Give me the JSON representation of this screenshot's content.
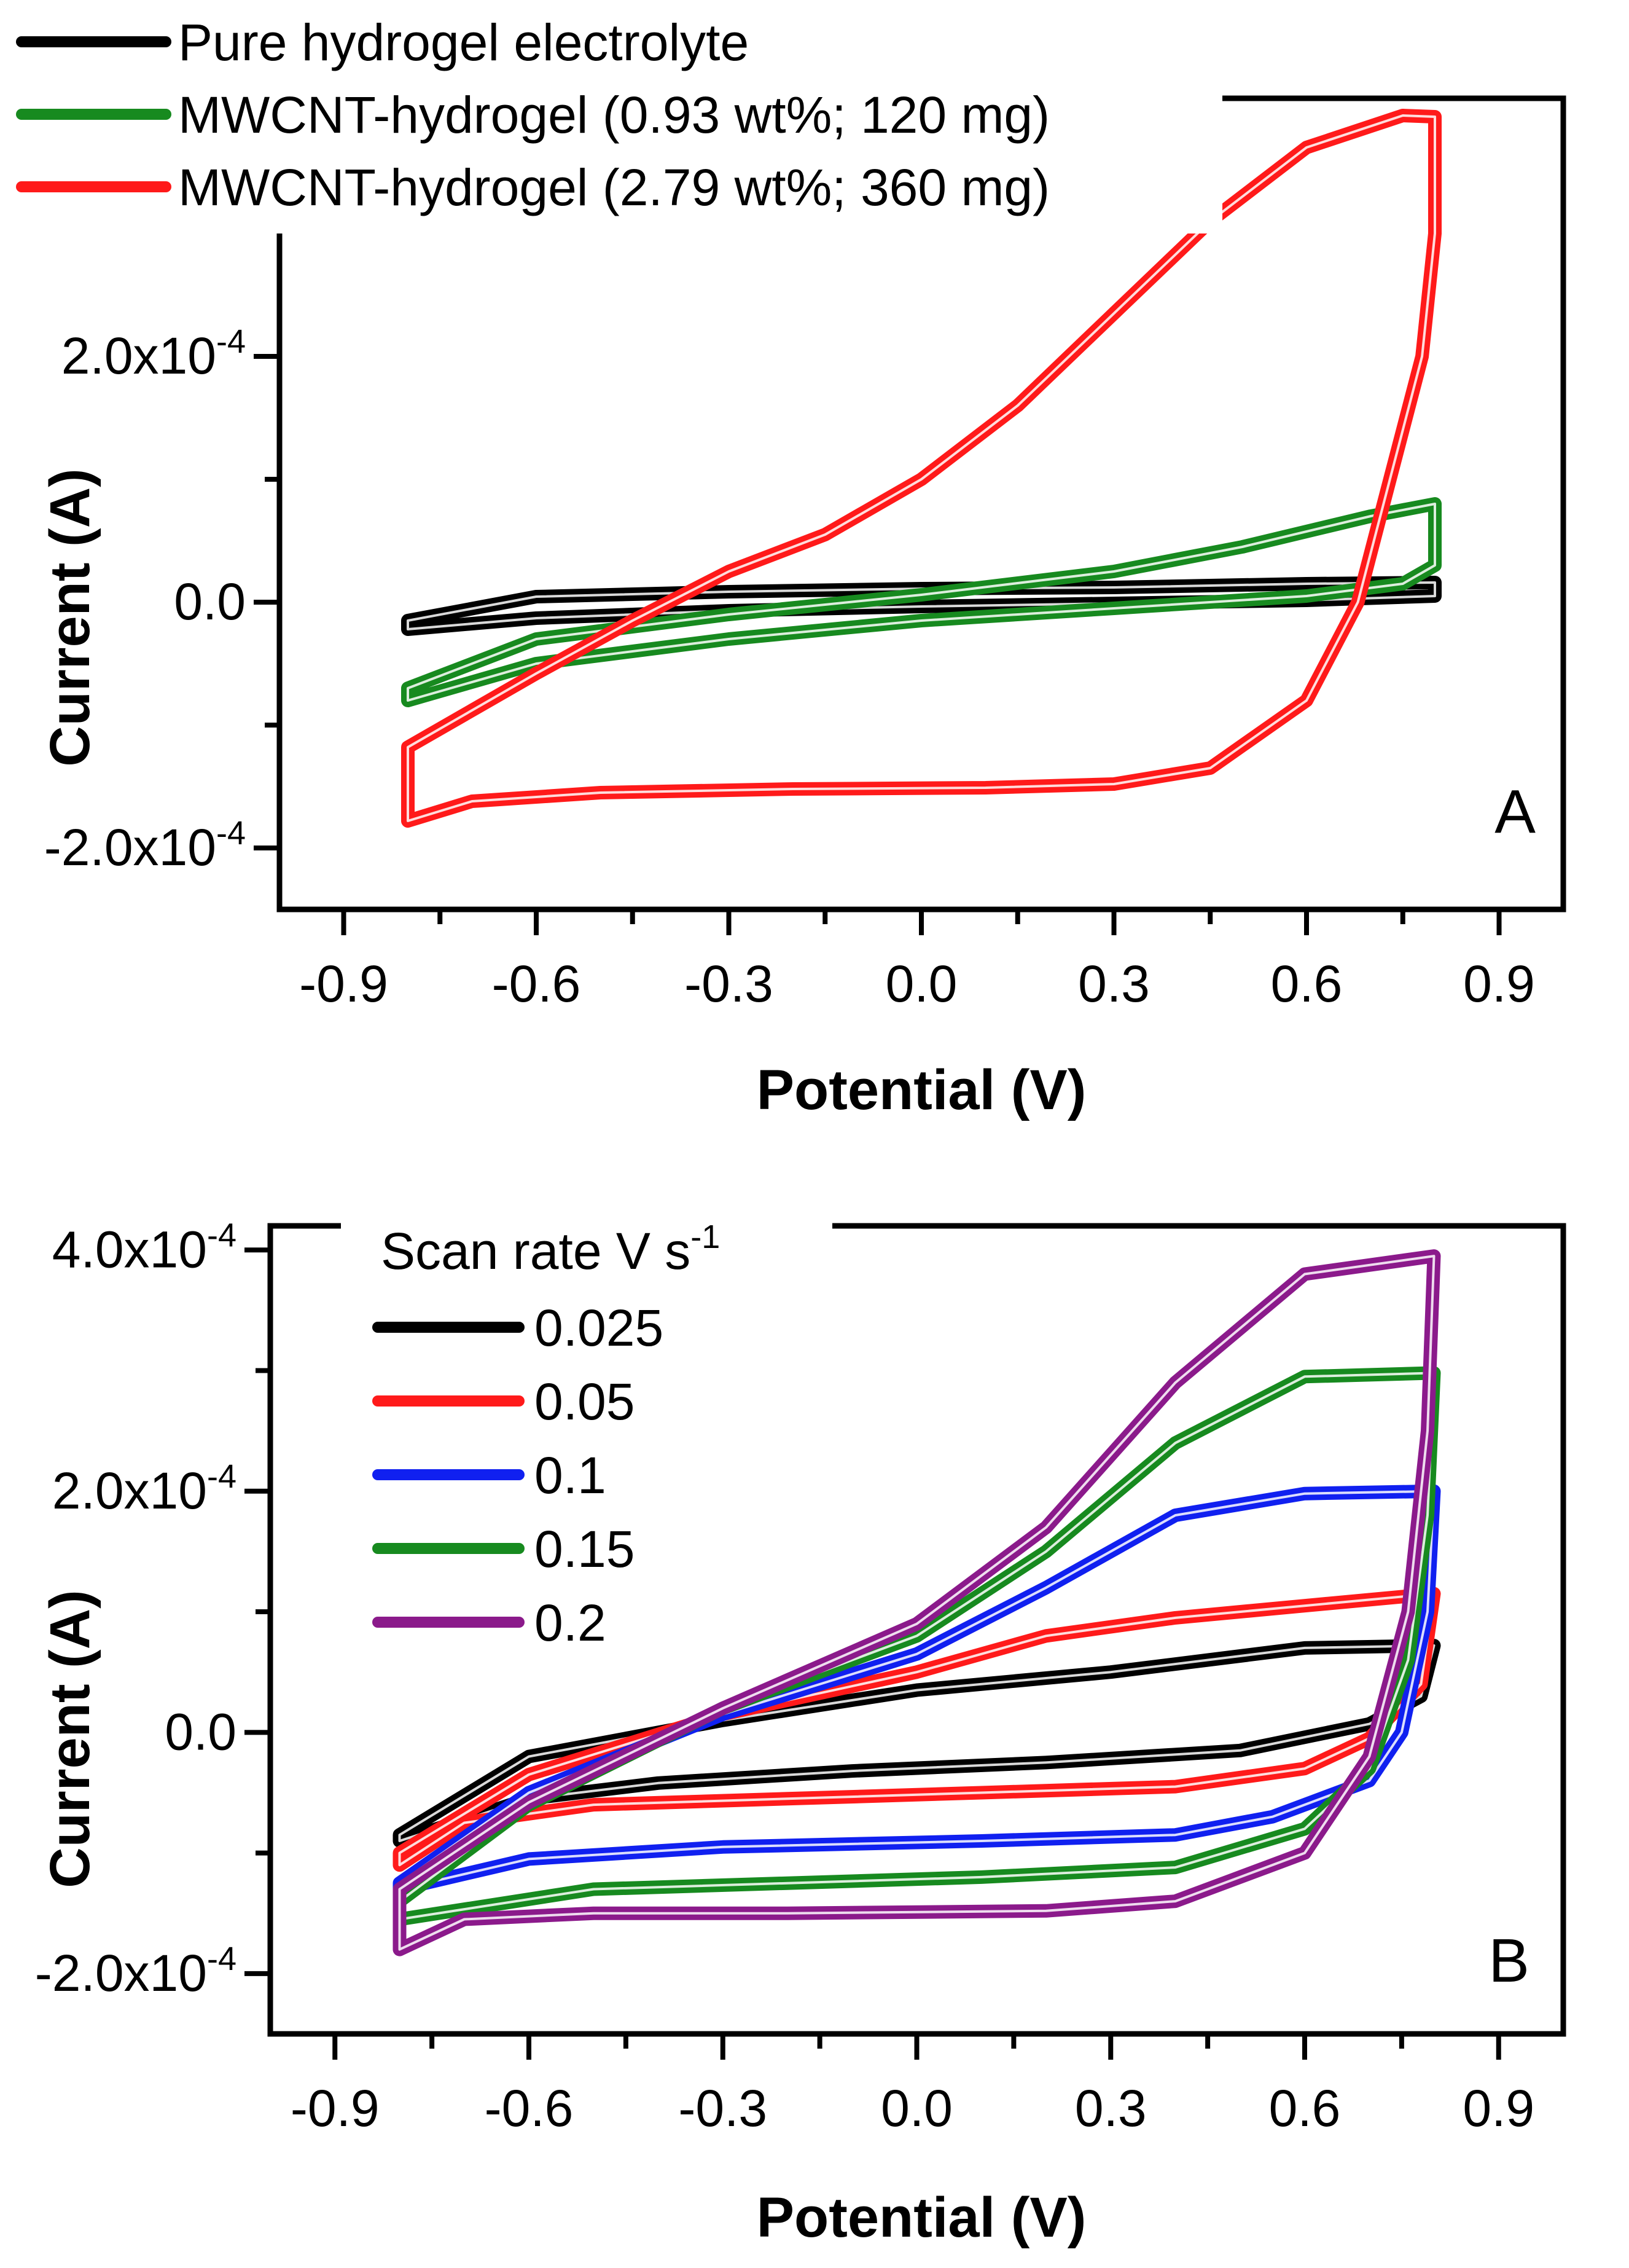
{
  "chart_data": [
    {
      "type": "line",
      "panel_label": "A",
      "xlabel": "Potential (V)",
      "ylabel": "Current (A)",
      "xlim": [
        -1.0,
        1.0
      ],
      "ylim": [
        -0.00025,
        0.00041
      ],
      "x_tick_values": [
        -0.9,
        -0.6,
        -0.3,
        0.0,
        0.3,
        0.6,
        0.9
      ],
      "x_tick_labels": [
        "-0.9",
        "-0.6",
        "-0.3",
        "0.0",
        "0.3",
        "0.6",
        "0.9"
      ],
      "y_tick_values": [
        -0.0002,
        0.0,
        0.0002
      ],
      "y_tick_labels": [
        {
          "mantissa": "-2.0x10",
          "exponent": "-4"
        },
        {
          "mantissa": "0.0",
          "exponent": ""
        },
        {
          "mantissa": "2.0x10",
          "exponent": "-4"
        }
      ],
      "legend_title": "",
      "legend_position": "top-left",
      "series": [
        {
          "name": "Pure hydrogel electrolyte",
          "color": "#000000",
          "forward": [
            [
              -0.8,
              -1.5e-05
            ],
            [
              -0.6,
              4.5e-06
            ],
            [
              -0.3,
              8.5e-06
            ],
            [
              0.0,
              1.1e-05
            ],
            [
              0.3,
              1.2e-05
            ],
            [
              0.6,
              1.5e-05
            ],
            [
              0.8,
              1.6e-05
            ]
          ],
          "reverse": [
            [
              0.8,
              5e-06
            ],
            [
              0.6,
              1.5e-06
            ],
            [
              0.3,
              -1e-06
            ],
            [
              0.0,
              -3.5e-06
            ],
            [
              -0.3,
              -7e-06
            ],
            [
              -0.6,
              -1.3e-05
            ],
            [
              -0.8,
              -2.2e-05
            ]
          ]
        },
        {
          "name": "MWCNT-hydrogel (0.93 wt%; 120 mg)",
          "color": "#178a1f",
          "forward": [
            [
              -0.8,
              -7e-05
            ],
            [
              -0.6,
              -3e-05
            ],
            [
              -0.3,
              -1e-05
            ],
            [
              0.0,
              6e-06
            ],
            [
              0.3,
              2.5e-05
            ],
            [
              0.5,
              4.5e-05
            ],
            [
              0.7,
              7e-05
            ],
            [
              0.8,
              8e-05
            ]
          ],
          "reverse": [
            [
              0.8,
              3e-05
            ],
            [
              0.75,
              1.5e-05
            ],
            [
              0.6,
              5e-06
            ],
            [
              0.3,
              -5e-06
            ],
            [
              0.0,
              -1.5e-05
            ],
            [
              -0.3,
              -3e-05
            ],
            [
              -0.6,
              -5e-05
            ],
            [
              -0.8,
              -8e-05
            ]
          ]
        },
        {
          "name": "MWCNT-hydrogel (2.79 wt%; 360 mg)",
          "color": "#ff1a1a",
          "forward": [
            [
              -0.8,
              -0.000118
            ],
            [
              -0.6,
              -5.8e-05
            ],
            [
              -0.45,
              -1.5e-05
            ],
            [
              -0.3,
              2.5e-05
            ],
            [
              -0.15,
              5.5e-05
            ],
            [
              0.0,
              0.0001
            ],
            [
              0.15,
              0.00016
            ],
            [
              0.3,
              0.000235
            ],
            [
              0.45,
              0.00031
            ],
            [
              0.6,
              0.00037
            ],
            [
              0.75,
              0.000396
            ],
            [
              0.8,
              0.000395
            ]
          ],
          "reverse": [
            [
              0.8,
              0.000395
            ],
            [
              0.8,
              0.0003
            ],
            [
              0.78,
              0.0002
            ],
            [
              0.73,
              0.0001
            ],
            [
              0.68,
              0.0
            ],
            [
              0.6,
              -8e-05
            ],
            [
              0.45,
              -0.000135
            ],
            [
              0.3,
              -0.000148
            ],
            [
              0.1,
              -0.000151
            ],
            [
              -0.2,
              -0.000152
            ],
            [
              -0.5,
              -0.000155
            ],
            [
              -0.7,
              -0.000162
            ],
            [
              -0.8,
              -0.000178
            ]
          ]
        }
      ]
    },
    {
      "type": "line",
      "panel_label": "B",
      "xlabel": "Potential (V)",
      "ylabel": "Current (A)",
      "xlim": [
        -1.0,
        1.0
      ],
      "ylim": [
        -0.00025,
        0.00042
      ],
      "x_tick_values": [
        -0.9,
        -0.6,
        -0.3,
        0.0,
        0.3,
        0.6,
        0.9
      ],
      "x_tick_labels": [
        "-0.9",
        "-0.6",
        "-0.3",
        "0.0",
        "0.3",
        "0.6",
        "0.9"
      ],
      "y_tick_values": [
        -0.0002,
        0.0,
        0.0002,
        0.0004
      ],
      "y_tick_labels": [
        {
          "mantissa": "-2.0x10",
          "exponent": "-4"
        },
        {
          "mantissa": "0.0",
          "exponent": ""
        },
        {
          "mantissa": "2.0x10",
          "exponent": "-4"
        },
        {
          "mantissa": "4.0x10",
          "exponent": "-4"
        }
      ],
      "legend_title": {
        "main": "Scan rate V s",
        "superscript": "-1"
      },
      "legend_position": "top-left",
      "series": [
        {
          "name": "0.025",
          "color": "#000000",
          "forward": [
            [
              -0.8,
              -8.5e-05
            ],
            [
              -0.6,
              -2e-05
            ],
            [
              -0.3,
              1e-05
            ],
            [
              0.0,
              3.5e-05
            ],
            [
              0.3,
              5e-05
            ],
            [
              0.6,
              7e-05
            ],
            [
              0.8,
              7.2e-05
            ]
          ],
          "reverse": [
            [
              0.8,
              7.2e-05
            ],
            [
              0.78,
              3e-05
            ],
            [
              0.7,
              7e-06
            ],
            [
              0.5,
              -1.5e-05
            ],
            [
              0.2,
              -2.5e-05
            ],
            [
              -0.1,
              -3.2e-05
            ],
            [
              -0.4,
              -4.2e-05
            ],
            [
              -0.6,
              -5.5e-05
            ],
            [
              -0.8,
              -9e-05
            ]
          ]
        },
        {
          "name": "0.05",
          "color": "#ff1a1a",
          "forward": [
            [
              -0.8,
              -0.0001
            ],
            [
              -0.6,
              -3.5e-05
            ],
            [
              -0.3,
              1.5e-05
            ],
            [
              0.0,
              5e-05
            ],
            [
              0.2,
              8e-05
            ],
            [
              0.4,
              9.5e-05
            ],
            [
              0.6,
              0.000105
            ],
            [
              0.8,
              0.000115
            ]
          ],
          "reverse": [
            [
              0.8,
              0.000115
            ],
            [
              0.78,
              4e-05
            ],
            [
              0.7,
              -5e-06
            ],
            [
              0.6,
              -3e-05
            ],
            [
              0.4,
              -4.5e-05
            ],
            [
              0.1,
              -5e-05
            ],
            [
              -0.2,
              -5.5e-05
            ],
            [
              -0.5,
              -6e-05
            ],
            [
              -0.7,
              -7.5e-05
            ],
            [
              -0.8,
              -0.00011
            ]
          ]
        },
        {
          "name": "0.1",
          "color": "#1020f0",
          "forward": [
            [
              -0.8,
              -0.000125
            ],
            [
              -0.6,
              -5e-05
            ],
            [
              -0.3,
              1.5e-05
            ],
            [
              0.0,
              6.5e-05
            ],
            [
              0.2,
              0.00012
            ],
            [
              0.4,
              0.00018
            ],
            [
              0.6,
              0.000198
            ],
            [
              0.8,
              0.0002
            ]
          ],
          "reverse": [
            [
              0.8,
              0.0002
            ],
            [
              0.79,
              0.0001
            ],
            [
              0.75,
              0.0
            ],
            [
              0.7,
              -4e-05
            ],
            [
              0.55,
              -7e-05
            ],
            [
              0.4,
              -8.5e-05
            ],
            [
              0.1,
              -9e-05
            ],
            [
              -0.3,
              -9.5e-05
            ],
            [
              -0.6,
              -0.000105
            ],
            [
              -0.8,
              -0.00013
            ]
          ]
        },
        {
          "name": "0.15",
          "color": "#178a1f",
          "forward": [
            [
              -0.8,
              -0.00014
            ],
            [
              -0.6,
              -6e-05
            ],
            [
              -0.3,
              2e-05
            ],
            [
              0.0,
              8e-05
            ],
            [
              0.2,
              0.00015
            ],
            [
              0.4,
              0.00024
            ],
            [
              0.6,
              0.000295
            ],
            [
              0.8,
              0.000298
            ]
          ],
          "reverse": [
            [
              0.8,
              0.000298
            ],
            [
              0.79,
              0.00018
            ],
            [
              0.76,
              6e-05
            ],
            [
              0.7,
              -3e-05
            ],
            [
              0.6,
              -8e-05
            ],
            [
              0.4,
              -0.000112
            ],
            [
              0.1,
              -0.00012
            ],
            [
              -0.2,
              -0.000125
            ],
            [
              -0.5,
              -0.00013
            ],
            [
              -0.8,
              -0.000155
            ]
          ]
        },
        {
          "name": "0.2",
          "color": "#8b1a8b",
          "forward": [
            [
              -0.8,
              -0.00013
            ],
            [
              -0.6,
              -5.8e-05
            ],
            [
              -0.3,
              2e-05
            ],
            [
              0.0,
              9e-05
            ],
            [
              0.2,
              0.00017
            ],
            [
              0.4,
              0.00029
            ],
            [
              0.6,
              0.00038
            ],
            [
              0.8,
              0.000395
            ]
          ],
          "reverse": [
            [
              0.8,
              0.000395
            ],
            [
              0.79,
              0.00025
            ],
            [
              0.76,
              0.0001
            ],
            [
              0.7,
              -2e-05
            ],
            [
              0.6,
              -0.0001
            ],
            [
              0.4,
              -0.00014
            ],
            [
              0.2,
              -0.000148
            ],
            [
              -0.2,
              -0.00015
            ],
            [
              -0.5,
              -0.00015
            ],
            [
              -0.7,
              -0.000155
            ],
            [
              -0.8,
              -0.00018
            ]
          ]
        }
      ]
    }
  ]
}
